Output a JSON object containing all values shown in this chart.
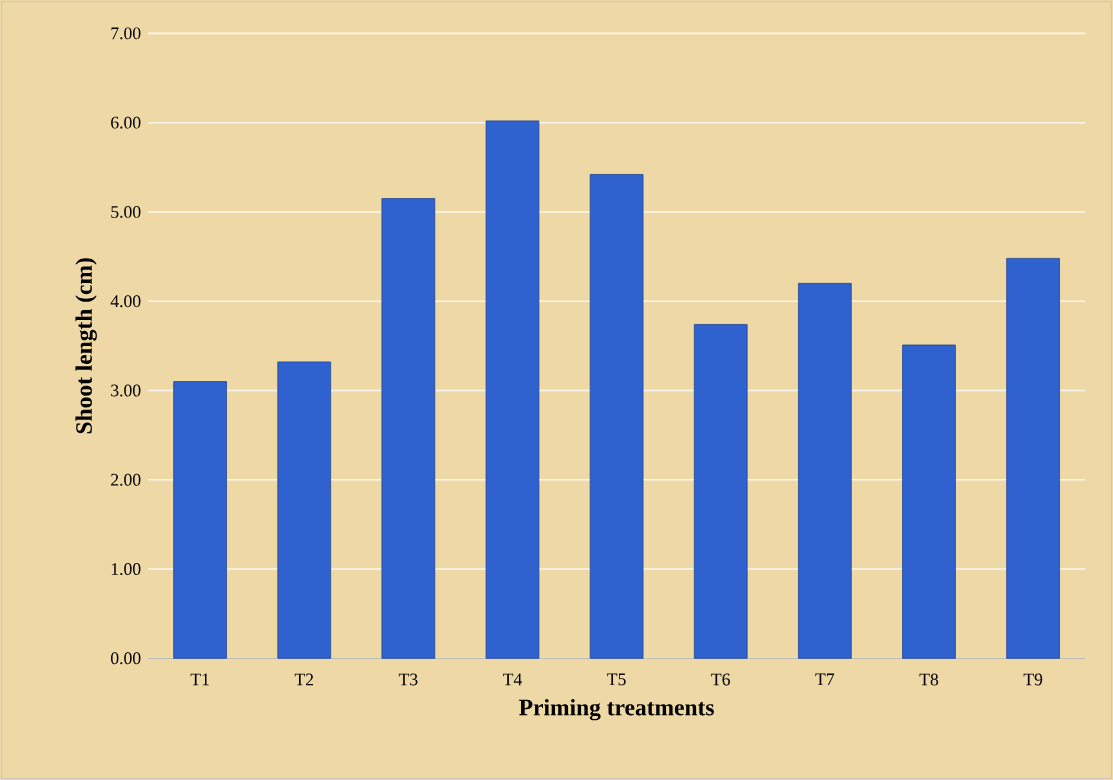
{
  "chart_data": {
    "type": "bar",
    "xlabel": "Priming treatments",
    "ylabel": "Shoot length (cm)",
    "categories": [
      "T1",
      "T2",
      "T3",
      "T4",
      "T5",
      "T6",
      "T7",
      "T8",
      "T9"
    ],
    "values": [
      3.1,
      3.32,
      5.15,
      6.02,
      5.42,
      3.74,
      4.2,
      3.51,
      4.48
    ],
    "color": "#2f62cf",
    "ylim": [
      0,
      7
    ],
    "yticks": [
      {
        "value": 0,
        "label": "0.00"
      },
      {
        "value": 1,
        "label": "1.00"
      },
      {
        "value": 2,
        "label": "2.00"
      },
      {
        "value": 3,
        "label": "3.00"
      },
      {
        "value": 4,
        "label": "4.00"
      },
      {
        "value": 5,
        "label": "5.00"
      },
      {
        "value": 6,
        "label": "6.00"
      },
      {
        "value": 7,
        "label": "7.00"
      }
    ],
    "grid": "y"
  }
}
